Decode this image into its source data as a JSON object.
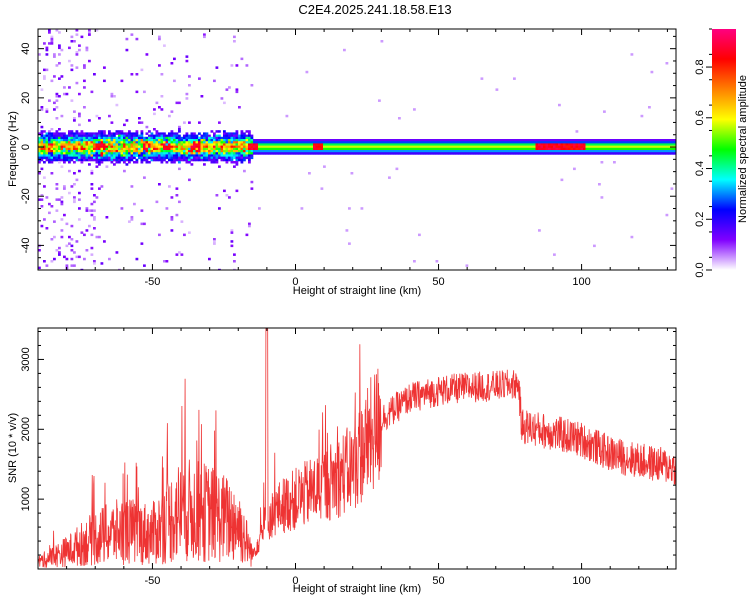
{
  "title": "C2E4.2025.241.18.58.E13",
  "chart_data": [
    {
      "type": "heatmap",
      "xlabel": "Height of straight line (km)",
      "ylabel": "Frequency (Hz)",
      "xlim": [
        -90,
        133
      ],
      "ylim": [
        -50,
        48
      ],
      "x_ticks": [
        -50,
        0,
        50,
        100
      ],
      "y_ticks": [
        -40,
        -20,
        0,
        20,
        40
      ],
      "colorbar": {
        "label": "Normalized spectral amplitude",
        "range": [
          0.0,
          0.95
        ],
        "ticks": [
          0.0,
          0.2,
          0.4,
          0.6,
          0.8
        ],
        "tick_labels": [
          "0.0",
          "0.2",
          "0.4",
          "0.6",
          "0.8"
        ],
        "colors": [
          "#ffffff",
          "#8000ff",
          "#0000ff",
          "#00ffff",
          "#00ff00",
          "#ffff00",
          "#ff8000",
          "#ff0000",
          "#ff0080"
        ]
      },
      "band_center_hz": 0,
      "band_halfwidth_hz": [
        6,
        3
      ],
      "hotspots_x": [
        -68,
        -52,
        -45,
        -35,
        -15,
        8,
        90,
        95
      ]
    },
    {
      "type": "line",
      "xlabel": "Height of straight line (km)",
      "ylabel": "SNR (10 * v/v)",
      "xlim": [
        -90,
        133
      ],
      "ylim": [
        0,
        3450
      ],
      "x_ticks": [
        -50,
        0,
        50,
        100
      ],
      "y_ticks": [
        1000,
        2000,
        3000
      ],
      "series": [
        {
          "name": "SNR",
          "color": "#ee3333",
          "x": [
            -90,
            -80,
            -70,
            -60,
            -50,
            -40,
            -30,
            -20,
            -15,
            -10,
            -5,
            0,
            10,
            20,
            30,
            40,
            50,
            60,
            70,
            78,
            79,
            90,
            100,
            110,
            120,
            133
          ],
          "y": [
            100,
            250,
            450,
            550,
            500,
            850,
            800,
            650,
            200,
            700,
            900,
            1000,
            1200,
            1450,
            2150,
            2450,
            2550,
            2600,
            2620,
            2650,
            2050,
            1950,
            1850,
            1650,
            1550,
            1450
          ]
        }
      ]
    }
  ]
}
